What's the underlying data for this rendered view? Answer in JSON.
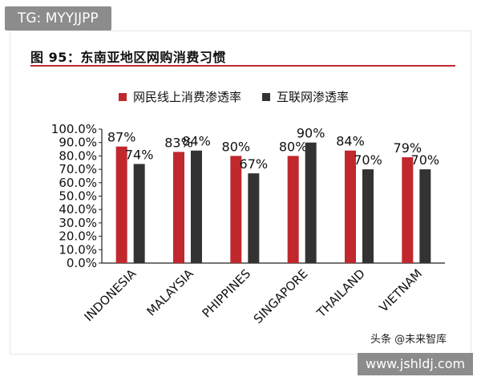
{
  "overlay": {
    "tg_label": "TG: MYYJJPP",
    "url_badge": "www.jshldj.com",
    "watermark": "头条 @未来智库"
  },
  "figure_title": "图 95：东南亚地区网购消费习惯",
  "colors": {
    "series1": "#c0282d",
    "series2": "#333333",
    "rule": "#c0282d"
  },
  "chart_data": {
    "type": "bar",
    "title": "",
    "xlabel": "",
    "ylabel": "",
    "categories": [
      "INDONESIA",
      "MALAYSIA",
      "PHIPPINES",
      "SINGAPORE",
      "THAILAND",
      "VIETNAM"
    ],
    "series": [
      {
        "name": "网民线上消费渗透率",
        "values": [
          87,
          83,
          80,
          80,
          84,
          79
        ],
        "labels": [
          "87%",
          "83%",
          "80%",
          "80%",
          "84%",
          "79%"
        ]
      },
      {
        "name": "互联网渗透率",
        "values": [
          74,
          84,
          67,
          90,
          70,
          70
        ],
        "labels": [
          "74%",
          "84%",
          "67%",
          "90%",
          "70%",
          "70%"
        ]
      }
    ],
    "ylim": [
      0,
      100
    ],
    "yticks": [
      "0.0%",
      "10.0%",
      "20.0%",
      "30.0%",
      "40.0%",
      "50.0%",
      "60.0%",
      "70.0%",
      "80.0%",
      "90.0%",
      "100.0%"
    ],
    "legend": "top",
    "grid": false
  }
}
